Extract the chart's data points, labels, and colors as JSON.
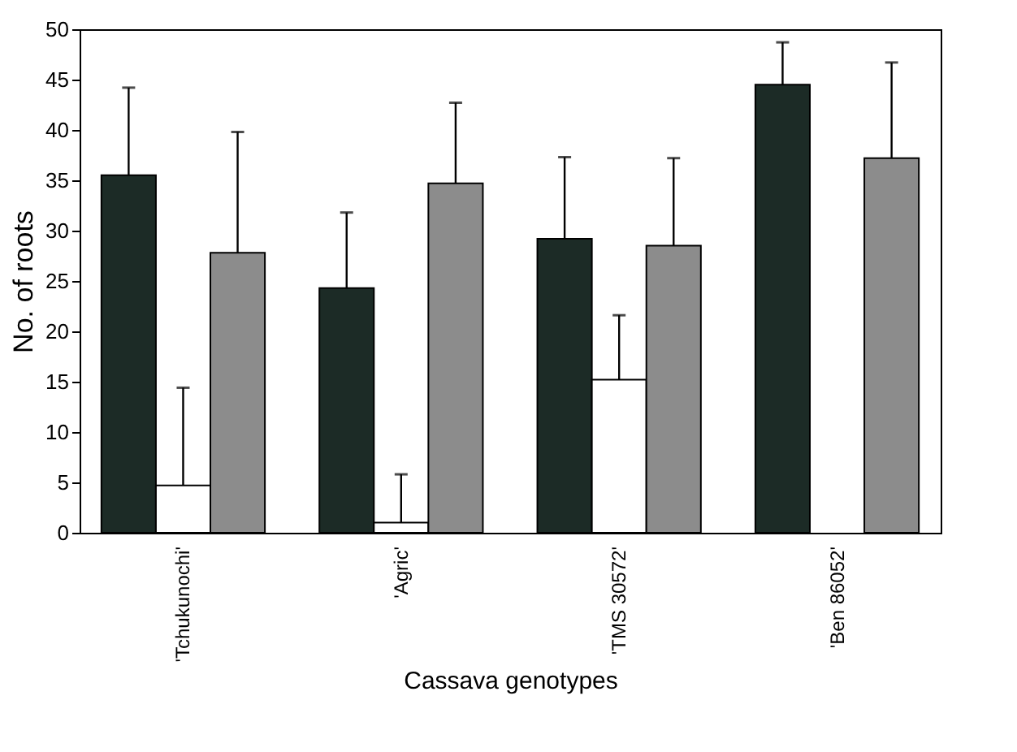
{
  "chart_data": {
    "type": "bar",
    "xlabel": "Cassava genotypes",
    "ylabel": "No. of roots",
    "categories": [
      "'Tchukunochi'",
      "'Agric'",
      "'TMS 30572'",
      "'Ben 86052'"
    ],
    "series": [
      {
        "color": "#1c2b26",
        "values": [
          35.5,
          24.3,
          29.2,
          44.5
        ],
        "errors": [
          [
            35.5,
            44.2
          ],
          [
            24.3,
            31.8
          ],
          [
            29.2,
            37.3
          ],
          [
            44.5,
            48.7
          ]
        ]
      },
      {
        "color": "#ffffff",
        "values": [
          4.7,
          1.0,
          15.2,
          null
        ],
        "errors": [
          [
            4.7,
            14.4
          ],
          [
            1.0,
            5.8
          ],
          [
            15.2,
            21.6
          ],
          null
        ]
      },
      {
        "color": "#8c8c8c",
        "values": [
          27.8,
          34.7,
          28.5,
          37.2
        ],
        "errors": [
          [
            27.8,
            39.8
          ],
          [
            34.7,
            42.7
          ],
          [
            28.5,
            37.2
          ],
          [
            37.2,
            46.7
          ]
        ]
      }
    ],
    "ylim": [
      0,
      50
    ],
    "yticks": [
      0,
      5,
      10,
      15,
      20,
      25,
      30,
      35,
      40,
      45,
      50
    ],
    "grid": false
  }
}
